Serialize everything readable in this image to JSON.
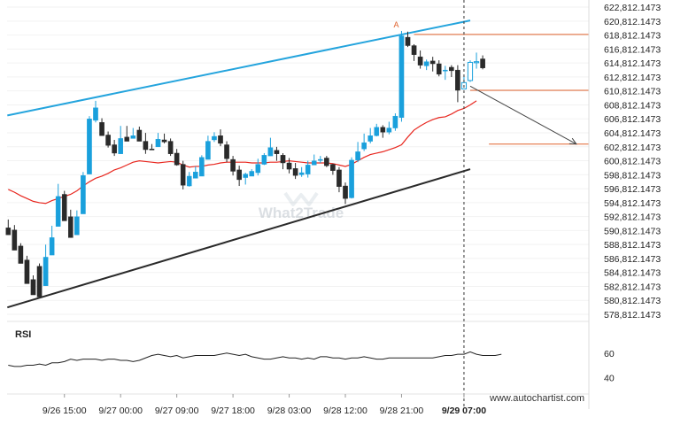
{
  "chart_data": {
    "type": "candlestick",
    "watermark": "What2Trade",
    "footer_url": "www.autochartist.com",
    "pattern_marker": "A",
    "ylim": [
      577800,
      623200
    ],
    "price_ticks": [
      "622,812.1473",
      "620,812.1473",
      "618,812.1473",
      "616,812.1473",
      "614,812.1473",
      "612,812.1473",
      "610,812.1473",
      "608,812.1473",
      "606,812.1473",
      "604,812.1473",
      "602,812.1473",
      "600,812.1473",
      "598,812.1473",
      "596,812.1473",
      "594,812.1473",
      "592,812.1473",
      "590,812.1473",
      "588,812.1473",
      "586,812.1473",
      "584,812.1473",
      "582,812.1473",
      "580,812.1473",
      "578,812.1473"
    ],
    "price_tick_values": [
      622812.1473,
      620812.1473,
      618812.1473,
      616812.1473,
      614812.1473,
      612812.1473,
      610812.1473,
      608812.1473,
      606812.1473,
      604812.1473,
      602812.1473,
      600812.1473,
      598812.1473,
      596812.1473,
      594812.1473,
      592812.1473,
      590812.1473,
      588812.1473,
      586812.1473,
      584812.1473,
      582812.1473,
      580812.1473,
      578812.1473
    ],
    "x_labels": [
      "9/26 15:00",
      "9/27 00:00",
      "9/27 09:00",
      "9/27 18:00",
      "9/28 03:00",
      "9/28 12:00",
      "9/28 21:00",
      "9/29 07:00"
    ],
    "x_label_bar_index": [
      9,
      18,
      27,
      36,
      45,
      54,
      63,
      73
    ],
    "current_time_bar_index": 73,
    "bar_count": 80,
    "candles": [
      [
        591200,
        590200,
        592400,
        590900
      ],
      [
        590900,
        588000,
        591600,
        588700
      ],
      [
        588600,
        586100,
        589000,
        586500
      ],
      [
        586600,
        583200,
        587200,
        583700
      ],
      [
        583800,
        581600,
        584400,
        585700
      ],
      [
        585700,
        581300,
        586100,
        582800
      ],
      [
        582900,
        587000,
        588800,
        587300
      ],
      [
        587300,
        589800,
        591500,
        591600
      ],
      [
        591400,
        595700,
        597500,
        596000
      ],
      [
        596000,
        592200,
        596500,
        592700
      ],
      [
        592800,
        589800,
        593800,
        590100
      ],
      [
        590200,
        592800,
        593700,
        593300
      ],
      [
        593200,
        598700,
        599200,
        599000
      ],
      [
        598900,
        606800,
        607200,
        607300
      ],
      [
        606600,
        608400,
        609400,
        606300
      ],
      [
        606300,
        604400,
        606900,
        604400
      ],
      [
        604500,
        603000,
        605000,
        602700
      ],
      [
        603100,
        601900,
        603800,
        601500
      ],
      [
        601800,
        604000,
        605800,
        605300
      ],
      [
        604200,
        603600,
        605800,
        604800
      ],
      [
        604000,
        604400,
        605500,
        605300
      ],
      [
        605200,
        603600,
        605700,
        603900
      ],
      [
        603600,
        602400,
        604800,
        601800
      ],
      [
        602500,
        602400,
        603200,
        602900
      ],
      [
        602800,
        603900,
        604800,
        604500
      ],
      [
        603800,
        603500,
        604700,
        603300
      ],
      [
        603600,
        601800,
        604000,
        601500
      ],
      [
        601900,
        600200,
        602500,
        600100
      ],
      [
        600300,
        597300,
        600800,
        596700
      ],
      [
        597200,
        598600,
        599200,
        597100
      ],
      [
        598300,
        599200,
        600000,
        598600
      ],
      [
        598600,
        601300,
        601600,
        601200
      ],
      [
        601000,
        603600,
        604400,
        603400
      ],
      [
        603800,
        604300,
        604900,
        603500
      ],
      [
        604400,
        603300,
        605300,
        602900
      ],
      [
        603100,
        601100,
        603600,
        600600
      ],
      [
        601000,
        599300,
        601500,
        598700
      ],
      [
        599500,
        598100,
        600100,
        597200
      ],
      [
        598400,
        598900,
        599100,
        597400
      ],
      [
        598600,
        599300,
        599600,
        598600
      ],
      [
        599100,
        600300,
        601100,
        598700
      ],
      [
        600300,
        601600,
        601900,
        600200
      ],
      [
        601500,
        602700,
        604100,
        601900
      ],
      [
        602300,
        601800,
        602800,
        600800
      ],
      [
        601600,
        600500,
        601900,
        599600
      ],
      [
        600500,
        599600,
        601200,
        599000
      ],
      [
        599700,
        598700,
        600500,
        598200
      ],
      [
        598800,
        599100,
        599900,
        598500
      ],
      [
        598900,
        600200,
        600800,
        598400
      ],
      [
        600200,
        600800,
        601700,
        600500
      ],
      [
        600900,
        601000,
        601500,
        600500
      ],
      [
        601200,
        600100,
        601500,
        599900
      ],
      [
        600300,
        599400,
        600400,
        598800
      ],
      [
        599500,
        597100,
        599900,
        596300
      ],
      [
        597200,
        595400,
        597700,
        594600
      ],
      [
        595500,
        600900,
        601300,
        595400
      ],
      [
        600900,
        602100,
        603500,
        600600
      ],
      [
        602500,
        603400,
        604700,
        602200
      ],
      [
        603600,
        604400,
        605500,
        603300
      ],
      [
        604400,
        605600,
        606100,
        604300
      ],
      [
        605600,
        604900,
        605900,
        604100
      ],
      [
        604900,
        605500,
        606400,
        604600
      ],
      [
        605500,
        607200,
        607600,
        605100
      ],
      [
        607000,
        618700,
        619400,
        606400
      ],
      [
        618500,
        617300,
        619300,
        617100
      ],
      [
        617300,
        616000,
        617500,
        615100
      ],
      [
        615700,
        614500,
        616600,
        614000
      ],
      [
        614400,
        615000,
        615300,
        613800
      ],
      [
        615100,
        614700,
        615700,
        613600
      ],
      [
        614700,
        613200,
        615200,
        612900
      ],
      [
        613700,
        613800,
        614400,
        612400
      ],
      [
        614200,
        613700,
        614500,
        612800
      ],
      [
        613800,
        610900,
        614500,
        609200
      ],
      [
        611100,
        612000,
        612900,
        611400
      ],
      [
        612300,
        614900,
        615200,
        612100
      ],
      [
        615000,
        615000,
        616300,
        614000
      ],
      [
        615400,
        614100,
        615900,
        613900
      ]
    ],
    "series": [
      {
        "name": "",
        "type": "moving_average",
        "color": "#e8271f",
        "values": [
          596700,
          596300,
          595800,
          595400,
          595000,
          594800,
          594700,
          595100,
          595400,
          595700,
          596000,
          596500,
          597200,
          597800,
          598300,
          598600,
          599000,
          599500,
          599800,
          600200,
          600600,
          600800,
          600700,
          600600,
          600500,
          600600,
          600700,
          600600,
          600200,
          599900,
          600000,
          600000,
          600200,
          600300,
          600500,
          600600,
          600600,
          600600,
          600600,
          600500,
          600500,
          600500,
          600600,
          600600,
          600700,
          600800,
          600700,
          600600,
          600500,
          600500,
          600500,
          600500,
          600400,
          600200,
          600000,
          600300,
          600800,
          601300,
          601700,
          601900,
          602100,
          602400,
          602700,
          603100,
          604200,
          605200,
          605800,
          606300,
          606700,
          607000,
          607100,
          607500,
          608000,
          608300,
          608800,
          609400
        ]
      },
      {
        "name": "",
        "type": "trendline",
        "color": "#24a4dd",
        "from": [
          0,
          607300
        ],
        "to": [
          74,
          620900
        ]
      },
      {
        "name": "",
        "type": "trendline",
        "color": "#2a2a2a",
        "from": [
          0,
          579800
        ],
        "to": [
          74,
          599600
        ]
      },
      {
        "name": "",
        "type": "projection",
        "color": "#444444",
        "from": [
          74,
          611500
        ],
        "to": [
          91,
          603200
        ]
      }
    ],
    "levels": [
      {
        "value": 618900,
        "from_index": 65,
        "color": "#e0632e"
      },
      {
        "value": 610900,
        "from_index": 74,
        "color": "#e0632e"
      },
      {
        "value": 603200,
        "from_index": 77,
        "color": "#e0632e"
      }
    ],
    "rsi": {
      "label": "RSI",
      "ylim": [
        30,
        70
      ],
      "ticks": [
        "60",
        "40"
      ],
      "tick_values": [
        60,
        40
      ],
      "values": [
        50,
        49,
        49,
        50,
        50,
        51,
        50,
        52,
        52,
        53,
        55,
        54,
        55,
        55,
        55,
        54,
        55,
        55,
        54,
        54,
        53,
        54,
        56,
        58,
        59,
        58,
        57,
        58,
        56,
        57,
        58,
        58,
        58,
        58,
        59,
        60,
        59,
        58,
        59,
        57,
        56,
        55,
        55,
        56,
        57,
        56,
        56,
        55,
        56,
        55,
        57,
        57,
        56,
        56,
        55,
        56,
        56,
        57,
        56,
        55,
        55,
        56,
        56,
        56,
        56,
        56,
        56,
        56,
        56,
        57,
        58,
        58,
        59,
        59,
        61,
        59,
        58,
        58,
        58,
        59
      ]
    }
  }
}
